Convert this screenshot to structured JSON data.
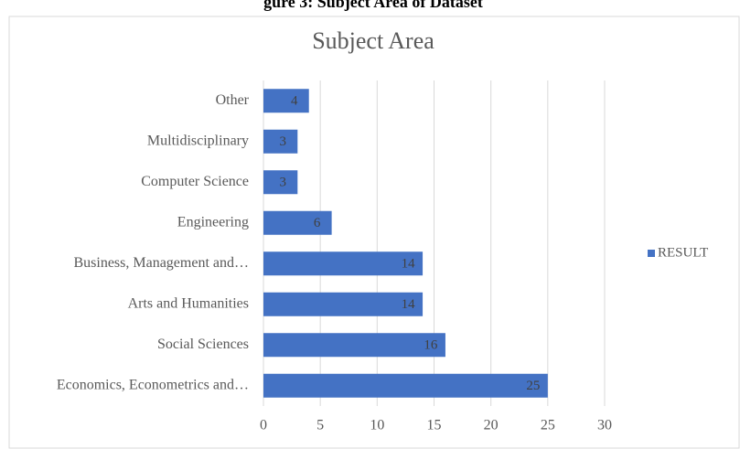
{
  "caption": "gure 3: Subject Area of Dataset",
  "chart_data": {
    "type": "bar",
    "orientation": "horizontal",
    "title": "Subject Area",
    "categories": [
      "Other",
      "Multidisciplinary",
      "Computer Science",
      "Engineering",
      "Business, Management and…",
      "Arts and Humanities",
      "Social Sciences",
      "Economics, Econometrics and…"
    ],
    "series": [
      {
        "name": "RESULT",
        "color": "#4472c4",
        "values": [
          4,
          3,
          3,
          6,
          14,
          14,
          16,
          25
        ]
      }
    ],
    "xlim": [
      0,
      30
    ],
    "xticks": [
      0,
      5,
      10,
      15,
      20,
      25,
      30
    ],
    "grid": true,
    "legend": "right"
  }
}
